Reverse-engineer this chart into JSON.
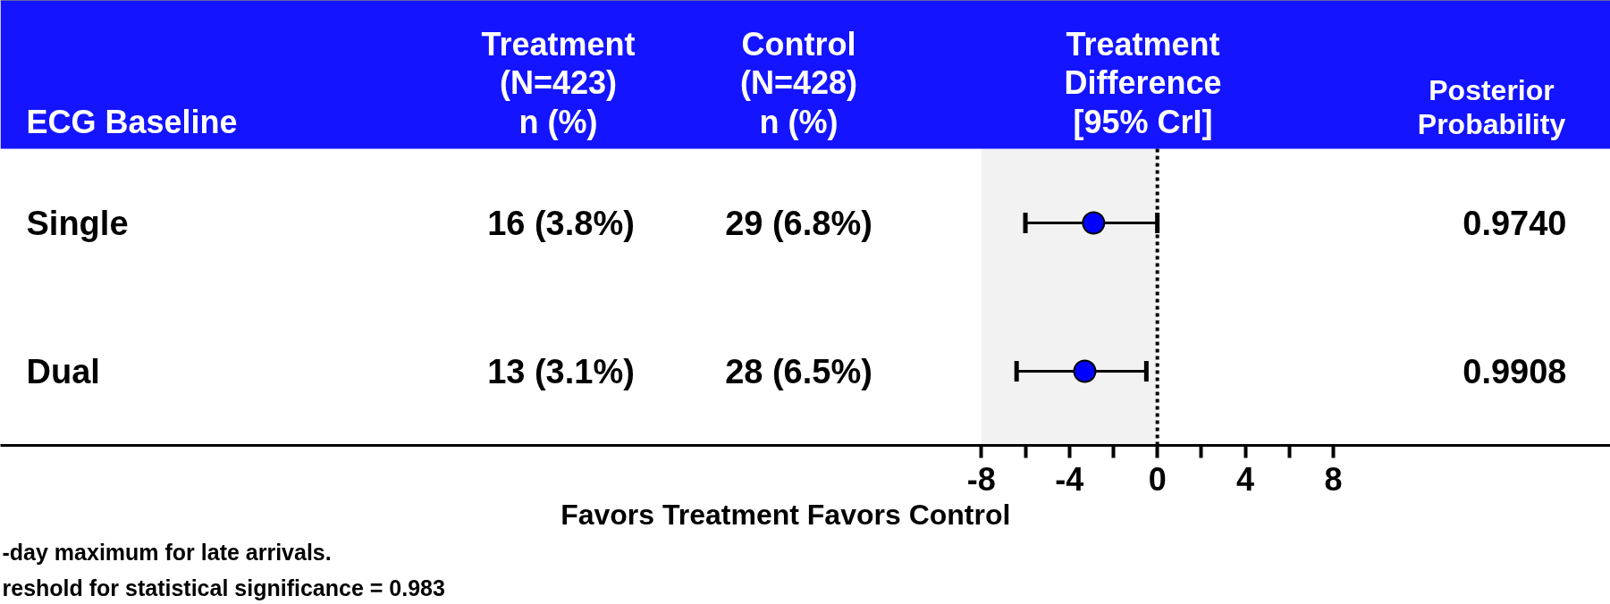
{
  "chart_data": {
    "type": "scatter",
    "orientation": "horizontal",
    "categories": [
      "Single",
      "Dual"
    ],
    "values": [
      -2.9,
      -3.3
    ],
    "color": "#0000ff",
    "errors": [
      [
        -6.0,
        0.0
      ],
      [
        -6.4,
        -0.5
      ]
    ],
    "xlim": [
      -52.6,
      20.6
    ],
    "xticks": [
      -8,
      {
        "value": -6,
        "label": null
      },
      -4,
      {
        "value": -2,
        "label": null
      },
      0,
      {
        "value": 2,
        "label": null
      },
      4,
      {
        "value": 6,
        "label": null
      },
      8
    ],
    "xlabel": "Favors Treatment      Favors Control",
    "marker": "circle",
    "grid": false,
    "ref_lines": [
      {
        "axis": "x",
        "value": 0,
        "color": "#000000",
        "line_style": "dotted"
      }
    ],
    "bands": [
      {
        "axis": "x",
        "from": -8,
        "to": 0,
        "color": "#f2f2f2"
      }
    ],
    "annotations": [
      "ECG Baseline",
      "Treatment\n(N=423)\nn (%)",
      "Control\n(N=428)\nn (%)",
      "Treatment\nDifference\n[95% CrI]",
      "Posterior\nProbability",
      "16 (3.8%)",
      "29 (6.8%)",
      "0.9740",
      "13 (3.1%)",
      "28 (6.5%)",
      "0.9908",
      "-day maximum for late arrivals.",
      "reshold for statistical significance = 0.983"
    ]
  }
}
